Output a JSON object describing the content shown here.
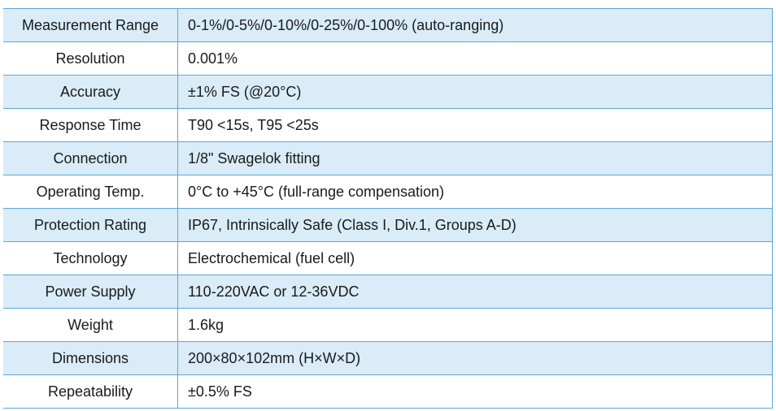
{
  "table": {
    "rows": [
      [
        "Measurement Range",
        "0-1%/0-5%/0-10%/0-25%/0-100% (auto-ranging)"
      ],
      [
        "Resolution",
        "0.001%"
      ],
      [
        "Accuracy",
        "±1% FS (@20°C)"
      ],
      [
        "Response Time",
        "T90 <15s, T95 <25s"
      ],
      [
        "Connection",
        "1/8\" Swagelok fitting"
      ],
      [
        "Operating Temp.",
        "0°C to +45°C (full-range compensation)"
      ],
      [
        "Protection Rating",
        "IP67, Intrinsically Safe (Class I, Div.1, Groups A-D)"
      ],
      [
        "Technology",
        "Electrochemical (fuel cell)"
      ],
      [
        "Power Supply",
        "110-220VAC or 12-36VDC"
      ],
      [
        "Weight",
        "1.6kg"
      ],
      [
        "Dimensions",
        "200×80×102mm (H×W×D)"
      ],
      [
        "Repeatability",
        "±0.5% FS"
      ]
    ]
  }
}
